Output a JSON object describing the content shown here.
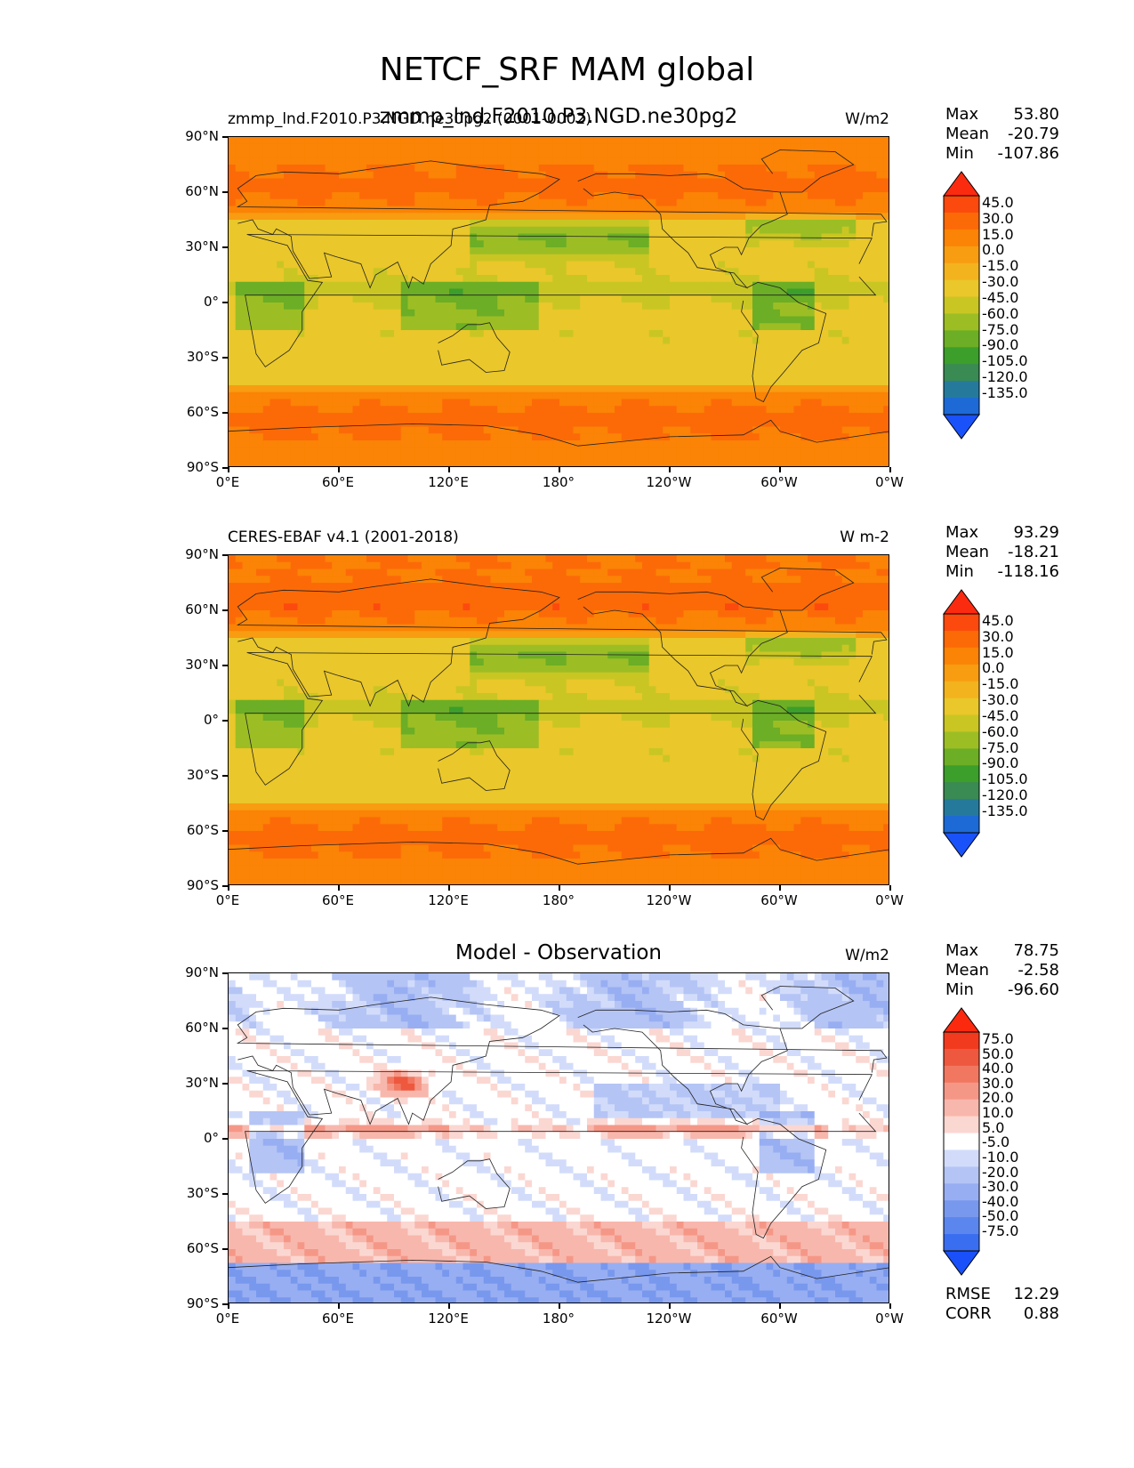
{
  "figure_title": "NETCF_SRF MAM global",
  "panels": [
    {
      "left_label": "zmmp_lnd.F2010.P3.NGD.ne30pg2 (0001-0002)",
      "center_label": "zmmp_lnd.F2010.P3.NGD.ne30pg2",
      "right_label": "W/m2",
      "stats": [
        {
          "label": "Max",
          "value": "53.80"
        },
        {
          "label": "Mean",
          "value": "-20.79"
        },
        {
          "label": "Min",
          "value": "-107.86"
        }
      ],
      "colorbar_labels": [
        "45.0",
        "30.0",
        "15.0",
        "0.0",
        "-15.0",
        "-30.0",
        "-45.0",
        "-60.0",
        "-75.0",
        "-90.0",
        "-105.0",
        "-120.0",
        "-135.0"
      ]
    },
    {
      "left_label": "CERES-EBAF v4.1 (2001-2018)",
      "center_label": "",
      "right_label": "W m-2",
      "stats": [
        {
          "label": "Max",
          "value": "93.29"
        },
        {
          "label": "Mean",
          "value": "-18.21"
        },
        {
          "label": "Min",
          "value": "-118.16"
        }
      ],
      "colorbar_labels": [
        "45.0",
        "30.0",
        "15.0",
        "0.0",
        "-15.0",
        "-30.0",
        "-45.0",
        "-60.0",
        "-75.0",
        "-90.0",
        "-105.0",
        "-120.0",
        "-135.0"
      ]
    },
    {
      "left_label": "",
      "center_label": "Model - Observation",
      "right_label": "W/m2",
      "stats": [
        {
          "label": "Max",
          "value": "78.75"
        },
        {
          "label": "Mean",
          "value": "-2.58"
        },
        {
          "label": "Min",
          "value": "-96.60"
        }
      ],
      "colorbar_labels": [
        "75.0",
        "50.0",
        "40.0",
        "30.0",
        "20.0",
        "10.0",
        "5.0",
        "-5.0",
        "-10.0",
        "-20.0",
        "-30.0",
        "-40.0",
        "-50.0",
        "-75.0"
      ],
      "extra_stats": [
        {
          "label": "RMSE",
          "value": "12.29"
        },
        {
          "label": "CORR",
          "value": "0.88"
        }
      ]
    }
  ],
  "axes": {
    "yticks": [
      "90°N",
      "60°N",
      "30°N",
      "0°",
      "30°S",
      "60°S",
      "90°S"
    ],
    "xticks": [
      "0°E",
      "60°E",
      "120°E",
      "180°",
      "120°W",
      "60°W",
      "0°W"
    ]
  },
  "colors": {
    "abs_scale": [
      "#1a52fa",
      "#1d6ad6",
      "#257a9c",
      "#3a8a54",
      "#3c9e2b",
      "#6cae25",
      "#9cbe24",
      "#c9c624",
      "#eac72a",
      "#f3b31f",
      "#f89c12",
      "#fb8305",
      "#fc6a08",
      "#fc4a0e",
      "#fb2b10"
    ],
    "diff_scale": [
      "#1a50fa",
      "#3a6ef0",
      "#5a86ee",
      "#7898ee",
      "#98aef2",
      "#b4c4f5",
      "#d2dcfa",
      "#ffffff",
      "#fbd7d2",
      "#f8b7ac",
      "#f59787",
      "#f17760",
      "#ee583e",
      "#f23a1e",
      "#fb2a0f"
    ]
  },
  "chart_data": [
    {
      "type": "heatmap",
      "title": "zmmp_lnd.F2010.P3.NGD.ne30pg2",
      "subtitle": "zmmp_lnd.F2010.P3.NGD.ne30pg2 (0001-0002)",
      "units": "W/m2",
      "xlim": [
        0,
        360
      ],
      "ylim": [
        -90,
        90
      ],
      "x_ticks": [
        "0°E",
        "60°E",
        "120°E",
        "180°",
        "120°W",
        "60°W",
        "0°W"
      ],
      "y_ticks": [
        "90°N",
        "60°N",
        "30°N",
        "0°",
        "30°S",
        "60°S",
        "90°S"
      ],
      "levels": [
        -135,
        -120,
        -105,
        -90,
        -75,
        -60,
        -45,
        -30,
        -15,
        0,
        15,
        30,
        45
      ],
      "max": 53.8,
      "mean": -20.79,
      "min": -107.86
    },
    {
      "type": "heatmap",
      "title": "CERES-EBAF v4.1 (2001-2018)",
      "units": "W m-2",
      "xlim": [
        0,
        360
      ],
      "ylim": [
        -90,
        90
      ],
      "x_ticks": [
        "0°E",
        "60°E",
        "120°E",
        "180°",
        "120°W",
        "60°W",
        "0°W"
      ],
      "y_ticks": [
        "90°N",
        "60°N",
        "30°N",
        "0°",
        "30°S",
        "60°S",
        "90°S"
      ],
      "levels": [
        -135,
        -120,
        -105,
        -90,
        -75,
        -60,
        -45,
        -30,
        -15,
        0,
        15,
        30,
        45
      ],
      "max": 93.29,
      "mean": -18.21,
      "min": -118.16
    },
    {
      "type": "heatmap",
      "title": "Model - Observation",
      "units": "W/m2",
      "xlim": [
        0,
        360
      ],
      "ylim": [
        -90,
        90
      ],
      "x_ticks": [
        "0°E",
        "60°E",
        "120°E",
        "180°",
        "120°W",
        "60°W",
        "0°W"
      ],
      "y_ticks": [
        "90°N",
        "60°N",
        "30°N",
        "0°",
        "30°S",
        "60°S",
        "90°S"
      ],
      "levels": [
        -75,
        -50,
        -40,
        -30,
        -20,
        -10,
        -5,
        5,
        10,
        20,
        30,
        40,
        50,
        75
      ],
      "max": 78.75,
      "mean": -2.58,
      "min": -96.6,
      "rmse": 12.29,
      "corr": 0.88
    }
  ]
}
